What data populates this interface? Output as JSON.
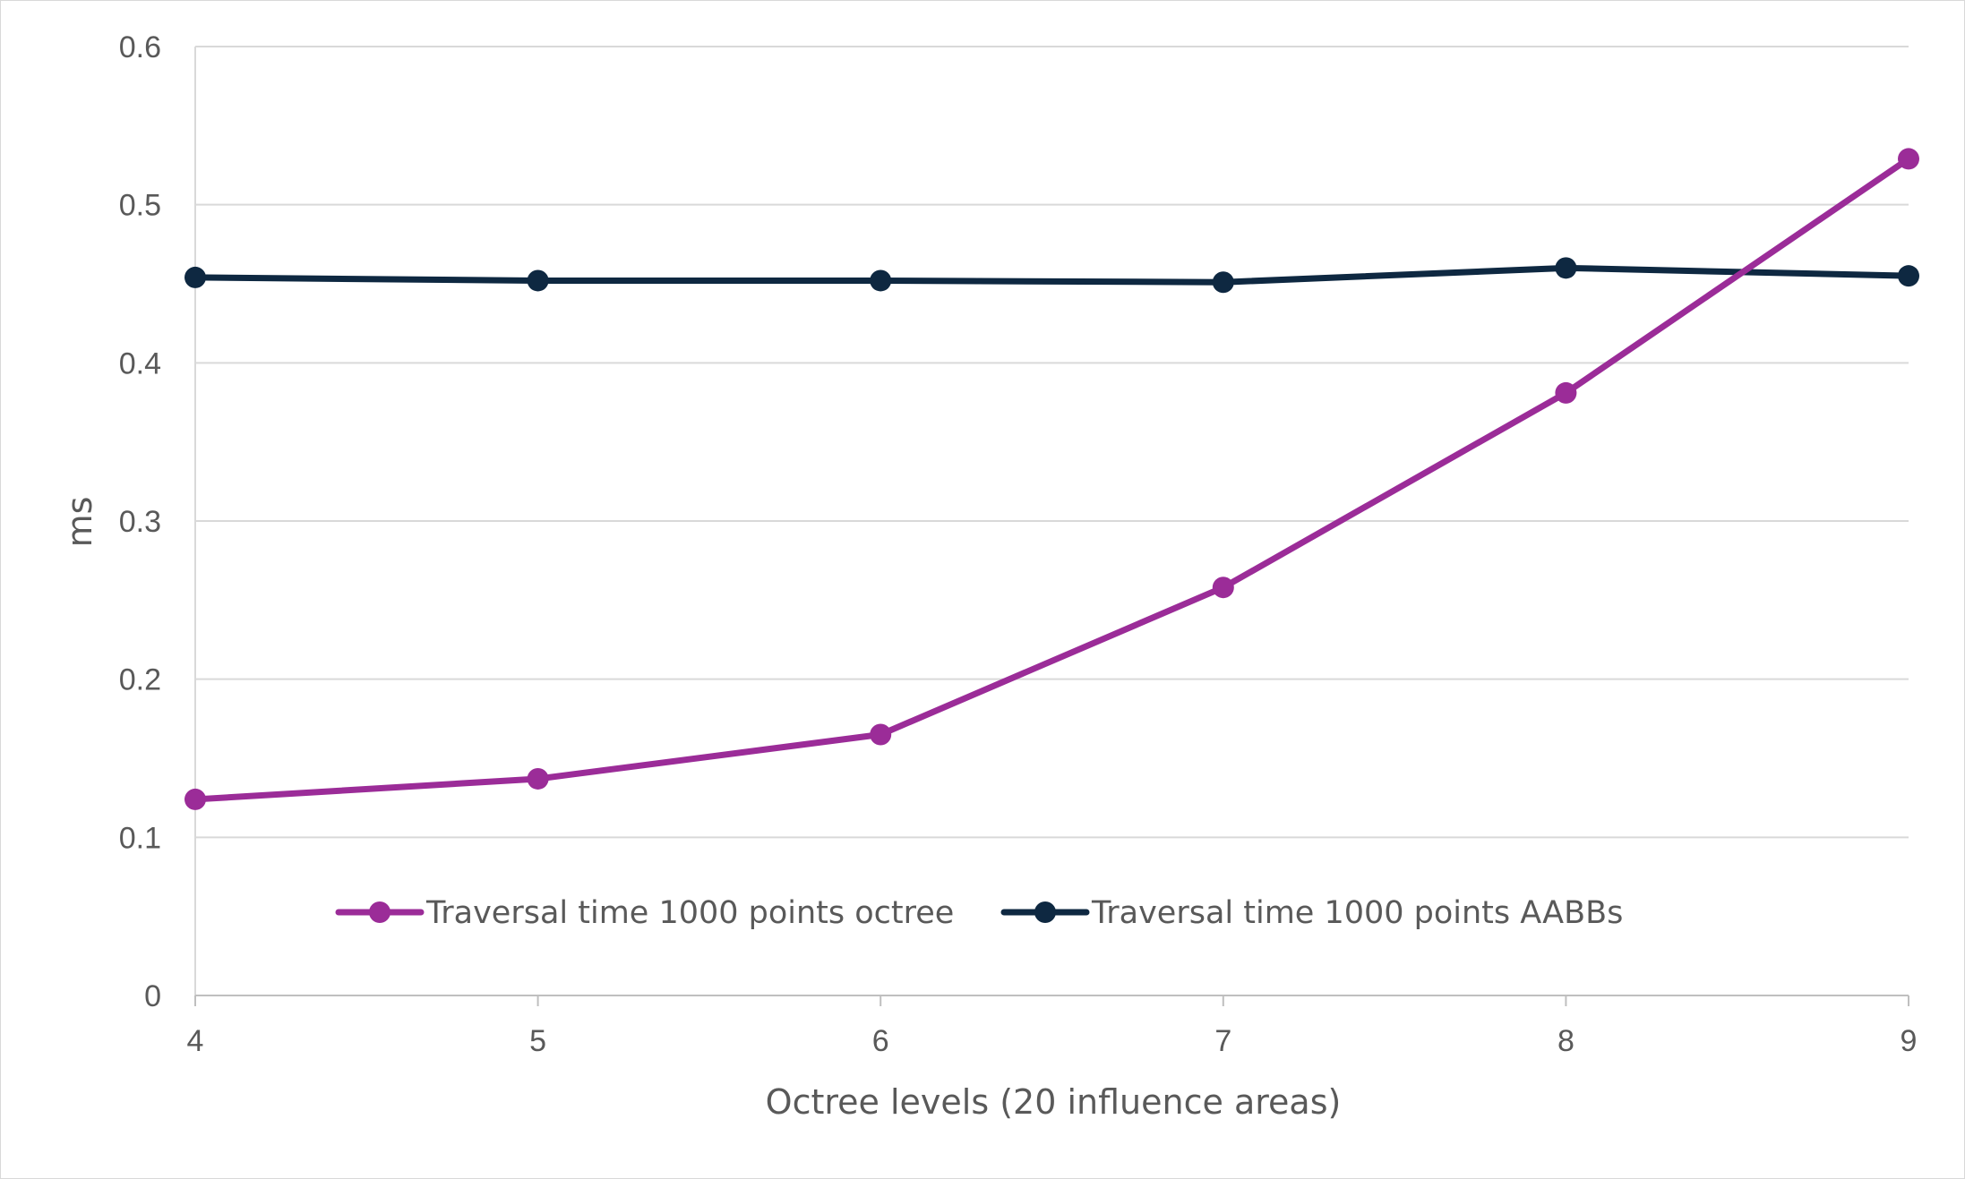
{
  "chart_data": {
    "type": "line",
    "title": "",
    "xlabel": "Octree levels (20 influence areas)",
    "ylabel": "ms",
    "x": [
      4,
      5,
      6,
      7,
      8,
      9
    ],
    "xlim": [
      4,
      9
    ],
    "ylim": [
      0,
      0.6
    ],
    "yticks": [
      0,
      0.1,
      0.2,
      0.3,
      0.4,
      0.5,
      0.6
    ],
    "ytick_labels": [
      "0",
      "0.1",
      "0.2",
      "0.3",
      "0.4",
      "0.5",
      "0.6"
    ],
    "xtick_labels": [
      "4",
      "5",
      "6",
      "7",
      "8",
      "9"
    ],
    "grid": "horizontal",
    "legend_position": "inside-bottom",
    "series": [
      {
        "name": "Traversal time 1000 points octree",
        "color": "#9b2c98",
        "values": [
          0.124,
          0.137,
          0.165,
          0.258,
          0.381,
          0.529
        ]
      },
      {
        "name": "Traversal time 1000 points AABBs",
        "color": "#0e2841",
        "values": [
          0.454,
          0.452,
          0.452,
          0.451,
          0.46,
          0.455
        ]
      }
    ]
  }
}
